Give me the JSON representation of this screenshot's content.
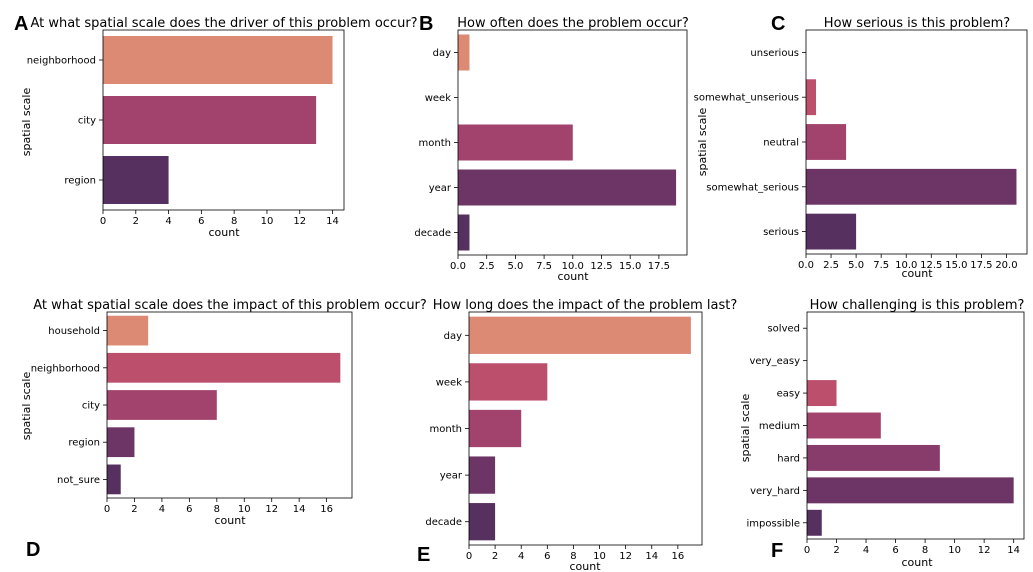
{
  "palette": [
    "#dd8a75",
    "#d0686b",
    "#bb4f6c",
    "#a2436d",
    "#873c6c",
    "#6c3566",
    "#56305e"
  ],
  "chart_data": [
    {
      "panel": "A",
      "type": "bar",
      "orientation": "horizontal",
      "title": "At what spatial scale does the driver of this problem occur?",
      "xlabel": "count",
      "ylabel": "spatial scale",
      "categories": [
        "neighborhood",
        "city",
        "region"
      ],
      "values": [
        14,
        13,
        4
      ],
      "xlim": [
        0,
        14.7
      ],
      "xticks": [
        0,
        2,
        4,
        6,
        8,
        10,
        12,
        14
      ],
      "grid": false
    },
    {
      "panel": "B",
      "type": "bar",
      "orientation": "horizontal",
      "title": "How often does the problem occur?",
      "xlabel": "count",
      "ylabel": "",
      "categories": [
        "day",
        "week",
        "month",
        "year",
        "decade"
      ],
      "values": [
        1,
        0,
        10,
        19,
        1
      ],
      "xlim": [
        0,
        19.95
      ],
      "xticks": [
        0.0,
        2.5,
        5.0,
        7.5,
        10.0,
        12.5,
        15.0,
        17.5
      ],
      "grid": false
    },
    {
      "panel": "C",
      "type": "bar",
      "orientation": "horizontal",
      "title": "How serious is this problem?",
      "xlabel": "count",
      "ylabel": "spatial scale",
      "categories": [
        "unserious",
        "somewhat_unserious",
        "neutral",
        "somewhat_serious",
        "serious"
      ],
      "values": [
        0,
        1,
        4,
        21,
        5
      ],
      "xlim": [
        0,
        22.05
      ],
      "xticks": [
        0.0,
        2.5,
        5.0,
        7.5,
        10.0,
        12.5,
        15.0,
        17.5,
        20.0
      ],
      "grid": false
    },
    {
      "panel": "D",
      "type": "bar",
      "orientation": "horizontal",
      "title": "At what spatial scale does the impact of this problem occur?",
      "xlabel": "count",
      "ylabel": "spatial scale",
      "categories": [
        "household",
        "neighborhood",
        "city",
        "region",
        "not_sure"
      ],
      "values": [
        3,
        17,
        8,
        2,
        1
      ],
      "xlim": [
        0,
        17.85
      ],
      "xticks": [
        0,
        2,
        4,
        6,
        8,
        10,
        12,
        14,
        16
      ],
      "grid": false
    },
    {
      "panel": "E",
      "type": "bar",
      "orientation": "horizontal",
      "title": "How long does the impact of the problem last?",
      "xlabel": "count",
      "ylabel": "",
      "categories": [
        "day",
        "week",
        "month",
        "year",
        "decade"
      ],
      "values": [
        17,
        6,
        4,
        2,
        2
      ],
      "xlim": [
        0,
        17.85
      ],
      "xticks": [
        0,
        2,
        4,
        6,
        8,
        10,
        12,
        14,
        16
      ],
      "grid": false
    },
    {
      "panel": "F",
      "type": "bar",
      "orientation": "horizontal",
      "title": "How challenging is this problem?",
      "xlabel": "count",
      "ylabel": "spatial scale",
      "categories": [
        "solved",
        "very_easy",
        "easy",
        "medium",
        "hard",
        "very_hard",
        "impossible"
      ],
      "values": [
        0,
        0,
        2,
        5,
        9,
        14,
        1
      ],
      "xlim": [
        0,
        14.7
      ],
      "xticks": [
        0,
        2,
        4,
        6,
        8,
        10,
        12,
        14
      ],
      "grid": false
    }
  ]
}
